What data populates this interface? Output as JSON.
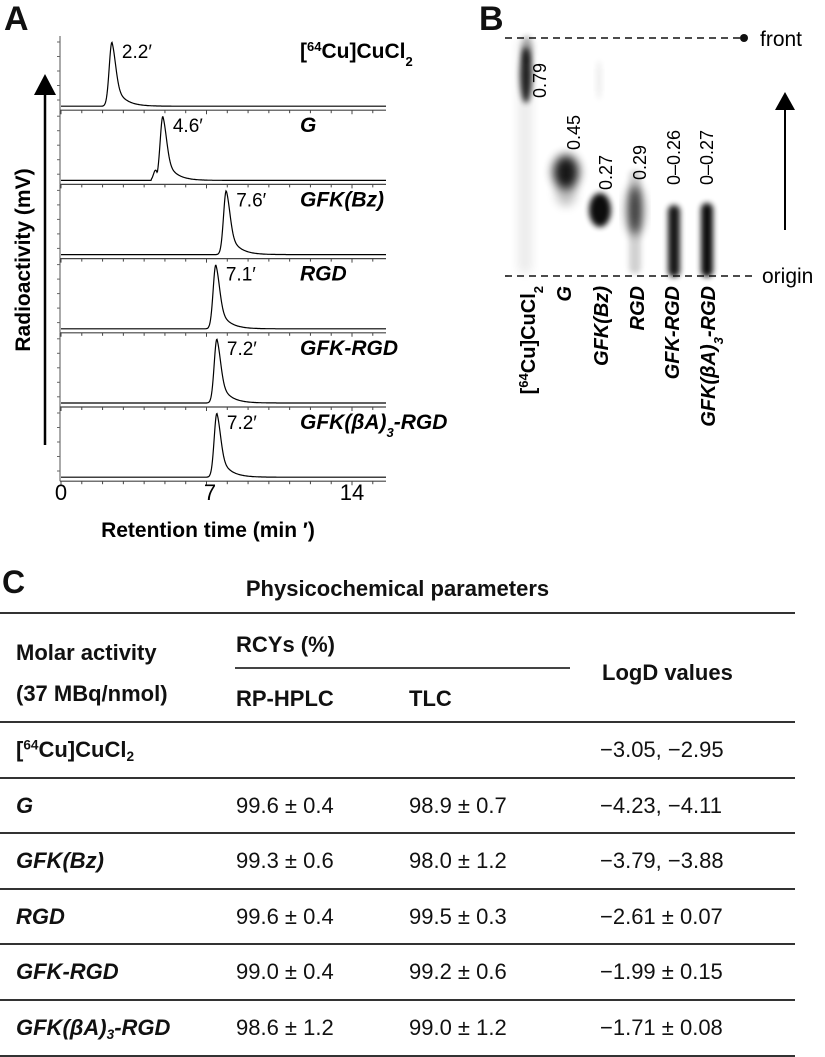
{
  "panels": {
    "a": {
      "letter": "A",
      "y_axis_label": "Radioactivity (mV)",
      "x_axis_label": "Retention time (min ′)",
      "x_ticks": [
        "0",
        "7",
        "14"
      ]
    },
    "b": {
      "letter": "B",
      "front_label": "front",
      "origin_label": "origin"
    },
    "c": {
      "letter": "C",
      "title": "Physicochemical parameters",
      "header": {
        "col1_line1": "Molar activity",
        "col1_line2": "(37 MBq/nmol)",
        "rcy_group": "RCYs (%)",
        "rp_hplc": "RP-HPLC",
        "tlc": "TLC",
        "logd": "LogD values"
      },
      "rows": [
        {
          "name_pre": "[",
          "name_sup": "64",
          "name_mid": "Cu]CuCl",
          "name_sub": "2",
          "name_post": "",
          "italic": false,
          "rp_hplc": "",
          "tlc": "",
          "logd": "−3.05, −2.95"
        },
        {
          "name_pre": "G",
          "name_sup": "",
          "name_mid": "",
          "name_sub": "",
          "name_post": "",
          "italic": true,
          "rp_hplc": "99.6 ± 0.4",
          "tlc": "98.9 ± 0.7",
          "logd": "−4.23, −4.11"
        },
        {
          "name_pre": "GFK(Bz)",
          "name_sup": "",
          "name_mid": "",
          "name_sub": "",
          "name_post": "",
          "italic": true,
          "rp_hplc": "99.3 ± 0.6",
          "tlc": "98.0 ± 1.2",
          "logd": "−3.79, −3.88"
        },
        {
          "name_pre": "RGD",
          "name_sup": "",
          "name_mid": "",
          "name_sub": "",
          "name_post": "",
          "italic": true,
          "rp_hplc": "99.6 ± 0.4",
          "tlc": "99.5 ± 0.3",
          "logd": "−2.61 ± 0.07"
        },
        {
          "name_pre": "GFK-RGD",
          "name_sup": "",
          "name_mid": "",
          "name_sub": "",
          "name_post": "",
          "italic": true,
          "rp_hplc": "99.0 ± 0.4",
          "tlc": "99.2 ± 0.6",
          "logd": "−1.99 ± 0.15"
        },
        {
          "name_pre": "GFK(βA)",
          "name_sup": "",
          "name_mid": "",
          "name_sub": "3",
          "name_post": "-RGD",
          "italic": true,
          "rp_hplc": "98.6 ± 1.2",
          "tlc": "99.0 ± 1.2",
          "logd": "−1.71 ± 0.08"
        }
      ]
    }
  },
  "chart_data": [
    {
      "type": "line",
      "title": "Radio-HPLC chromatograms",
      "xlabel": "Retention time (min ′)",
      "ylabel": "Radioactivity (mV)",
      "xlim": [
        0,
        15
      ],
      "x_ticks": [
        0,
        7,
        14
      ],
      "series": [
        {
          "name": "[64Cu]CuCl2",
          "label_html": "[<sup>64</sup>Cu]CuCl<sub>2</sub>",
          "italic": false,
          "peak_min": 2.2,
          "peak_label": "2.2′",
          "pos": 2.45,
          "shoulder": false
        },
        {
          "name": "G",
          "label_html": "G",
          "italic": true,
          "peak_min": 4.6,
          "peak_label": "4.6′",
          "pos": 4.9,
          "shoulder": true
        },
        {
          "name": "GFK(Bz)",
          "label_html": "GFK(Bz)",
          "italic": true,
          "peak_min": 7.6,
          "peak_label": "7.6′",
          "pos": 7.95,
          "shoulder": false
        },
        {
          "name": "RGD",
          "label_html": "RGD",
          "italic": true,
          "peak_min": 7.1,
          "peak_label": "7.1′",
          "pos": 7.45,
          "shoulder": false
        },
        {
          "name": "GFK-RGD",
          "label_html": "GFK-RGD",
          "italic": true,
          "peak_min": 7.2,
          "peak_label": "7.2′",
          "pos": 7.5,
          "shoulder": false
        },
        {
          "name": "GFK(βA)3-RGD",
          "label_html": "GFK(βA)<sub>3</sub>-RGD",
          "italic": true,
          "peak_min": 7.2,
          "peak_label": "7.2′",
          "pos": 7.5,
          "shoulder": false
        }
      ]
    },
    {
      "type": "heatmap",
      "title": "Radio-TLC",
      "lanes": [
        {
          "name": "[64Cu]CuCl2",
          "label_html": "[<sup>64</sup>Cu]CuCl<sub>2</sub>",
          "italic": false,
          "rf_label": "0.79"
        },
        {
          "name": "G",
          "label_html": "G",
          "italic": true,
          "rf_label": "0.45"
        },
        {
          "name": "GFK(Bz)",
          "label_html": "GFK(Bz)",
          "italic": true,
          "rf_label": "0.27"
        },
        {
          "name": "RGD",
          "label_html": "RGD",
          "italic": true,
          "rf_label": "0.29"
        },
        {
          "name": "GFK-RGD",
          "label_html": "GFK-RGD",
          "italic": true,
          "rf_label": "0–0.26"
        },
        {
          "name": "GFK(βA)3-RGD",
          "label_html": "GFK(βA)<sub>3</sub>-RGD",
          "italic": true,
          "rf_label": "0–0.27"
        }
      ],
      "front_label": "front",
      "origin_label": "origin"
    }
  ]
}
